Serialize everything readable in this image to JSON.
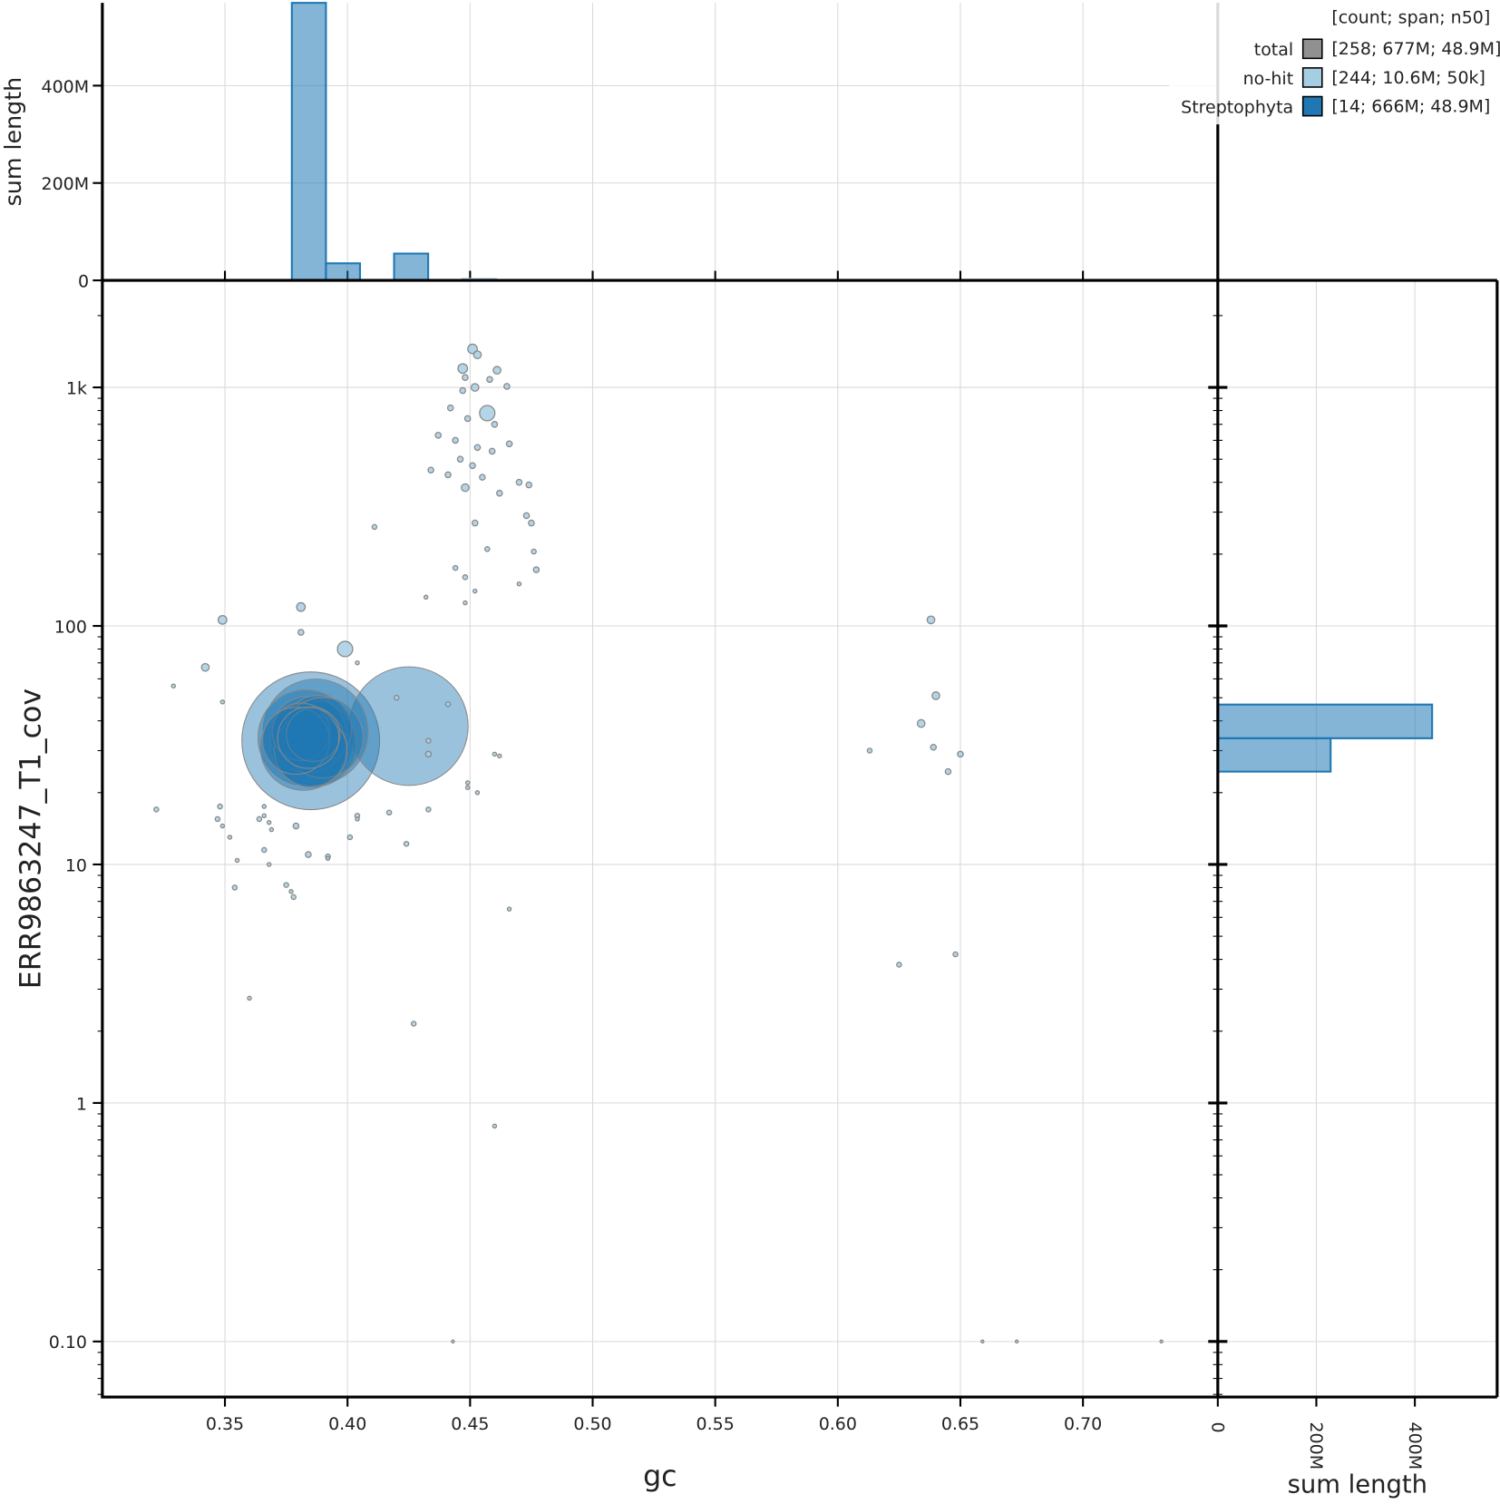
{
  "chart_data": [
    {
      "type": "scatter",
      "xlabel": "gc",
      "ylabel": "ERR9863247_T1_cov",
      "log_y": true,
      "grid": true,
      "xlim": [
        0.3,
        0.755
      ],
      "ylim": [
        0.0585,
        2810
      ],
      "xticks": [
        0.35,
        {
          "value": 0.4,
          "label": "0.40"
        },
        0.45,
        {
          "value": 0.5,
          "label": "0.50"
        },
        0.55,
        {
          "value": 0.6,
          "label": "0.60"
        },
        0.65,
        {
          "value": 0.7,
          "label": "0.70"
        }
      ],
      "yticks": [
        {
          "value": 0.1,
          "label": "0.10"
        },
        1,
        10,
        100,
        {
          "value": 1000,
          "label": "1k"
        }
      ],
      "legend_header": "[count; span; n50]",
      "legend_position": "top-right",
      "total": {
        "name": "total",
        "color": "#909090",
        "stats": "[258; 677M; 48.9M]"
      },
      "series": [
        {
          "name": "no-hit",
          "color": "#a6cee3",
          "stats": "[244; 10.6M; 50k]",
          "x": [
            0.451,
            0.453,
            0.447,
            0.461,
            0.448,
            0.458,
            0.452,
            0.447,
            0.465,
            0.457,
            0.442,
            0.449,
            0.46,
            0.437,
            0.444,
            0.453,
            0.459,
            0.466,
            0.446,
            0.451,
            0.434,
            0.441,
            0.455,
            0.47,
            0.448,
            0.462,
            0.474,
            0.473,
            0.475,
            0.452,
            0.411,
            0.457,
            0.476,
            0.477,
            0.444,
            0.448,
            0.47,
            0.452,
            0.432,
            0.448,
            0.381,
            0.349,
            0.381,
            0.399,
            0.342,
            0.329,
            0.404,
            0.349,
            0.42,
            0.441,
            0.433,
            0.433,
            0.46,
            0.462,
            0.449,
            0.449,
            0.453,
            0.322,
            0.348,
            0.347,
            0.349,
            0.352,
            0.366,
            0.366,
            0.364,
            0.368,
            0.369,
            0.379,
            0.404,
            0.404,
            0.417,
            0.433,
            0.401,
            0.424,
            0.366,
            0.355,
            0.368,
            0.384,
            0.392,
            0.392,
            0.354,
            0.375,
            0.377,
            0.378,
            0.466,
            0.36,
            0.427,
            0.46,
            0.443,
            0.659,
            0.673,
            0.732,
            0.625,
            0.648,
            0.638,
            0.64,
            0.634,
            0.639,
            0.613,
            0.645,
            0.65
          ],
          "y": [
            1450,
            1370,
            1200,
            1180,
            1100,
            1080,
            1000,
            970,
            1010,
            780,
            820,
            740,
            700,
            630,
            600,
            560,
            540,
            580,
            500,
            470,
            450,
            430,
            420,
            400,
            380,
            360,
            390,
            290,
            270,
            270,
            260,
            210,
            205,
            172,
            175,
            160,
            150,
            140,
            132,
            125,
            120,
            106,
            94,
            80,
            67,
            56,
            70,
            48,
            50,
            47,
            33,
            29,
            29,
            28.5,
            22,
            21,
            20,
            17,
            17.5,
            15.5,
            14.5,
            13,
            17.5,
            16,
            15.5,
            15,
            14,
            14.5,
            16,
            15.5,
            16.5,
            17,
            13,
            12.2,
            11.5,
            10.4,
            10,
            11,
            10.8,
            10.6,
            8,
            8.2,
            7.7,
            7.3,
            6.5,
            2.75,
            2.15,
            0.8,
            0.1,
            0.1,
            0.1,
            0.1,
            3.8,
            4.2,
            106,
            51,
            39,
            31,
            30,
            24.5,
            29
          ],
          "sizes": [
            5,
            4,
            5,
            4,
            3,
            3,
            4,
            3,
            3,
            8,
            3,
            3,
            3,
            3,
            3,
            3,
            3,
            3,
            3,
            3,
            3,
            3,
            3,
            3,
            4,
            3,
            3,
            3,
            3,
            3,
            2.5,
            2.5,
            2.5,
            3,
            2.5,
            2.5,
            2,
            2,
            2,
            2,
            4.5,
            4.5,
            3,
            8,
            4,
            2,
            2,
            2,
            2.5,
            2.5,
            2.5,
            3,
            2,
            2,
            2,
            2,
            2,
            2.5,
            2.5,
            2.5,
            2,
            2,
            2,
            2,
            2.5,
            2,
            2,
            3,
            2.5,
            2,
            2.5,
            2.5,
            2.5,
            2.5,
            2.5,
            2,
            2,
            3,
            2.5,
            2,
            2.5,
            2.5,
            2,
            2.5,
            2,
            2,
            2.5,
            2,
            1.5,
            1.5,
            1.5,
            1.5,
            2.5,
            2.5,
            4,
            4,
            4,
            3,
            2.5,
            3,
            3
          ]
        },
        {
          "name": "Streptophyta",
          "color": "#1f78b4",
          "stats": "[14; 666M; 48.9M]",
          "x": [
            0.385,
            0.425,
            0.387,
            0.383,
            0.386,
            0.384,
            0.388,
            0.382,
            0.39,
            0.385,
            0.381,
            0.379,
            0.386,
            0.384
          ],
          "y": [
            33,
            38,
            36,
            34,
            32,
            35,
            37,
            31,
            34,
            30,
            36,
            33,
            35,
            34
          ],
          "sizes": [
            72,
            62,
            55,
            50,
            45,
            40,
            35,
            45,
            42,
            38,
            30,
            35,
            28,
            32
          ]
        }
      ]
    },
    {
      "type": "histogram",
      "orientation": "vertical",
      "ylabel": "sum length",
      "grid": true,
      "ylim": [
        0,
        570000000
      ],
      "yticks": [
        0,
        {
          "value": 200000000,
          "label": "200M"
        },
        {
          "value": 400000000,
          "label": "400M"
        }
      ],
      "bins": [
        0.3773,
        0.3912,
        0.4051,
        0.419,
        0.4329,
        0.4468,
        0.4607
      ],
      "series": [
        {
          "name": "Streptophyta",
          "color": "#1f78b4",
          "values": [
            570000000,
            35000000,
            0,
            55000000,
            0,
            0
          ]
        },
        {
          "name": "no-hit",
          "color": "#a6cee3",
          "values": [
            0,
            0,
            0,
            0,
            0,
            3000000
          ]
        }
      ]
    },
    {
      "type": "histogram",
      "orientation": "horizontal",
      "xlabel": "sum length",
      "grid": true,
      "xlim": [
        0,
        567000000
      ],
      "xticks": [
        0,
        {
          "value": 200000000,
          "label": "200M"
        },
        {
          "value": 400000000,
          "label": "400M"
        }
      ],
      "bins": [
        24.5,
        33.8,
        46.8
      ],
      "series": [
        {
          "name": "Streptophyta",
          "color": "#1f78b4",
          "values": [
            229000000,
            435000000
          ]
        }
      ]
    }
  ]
}
